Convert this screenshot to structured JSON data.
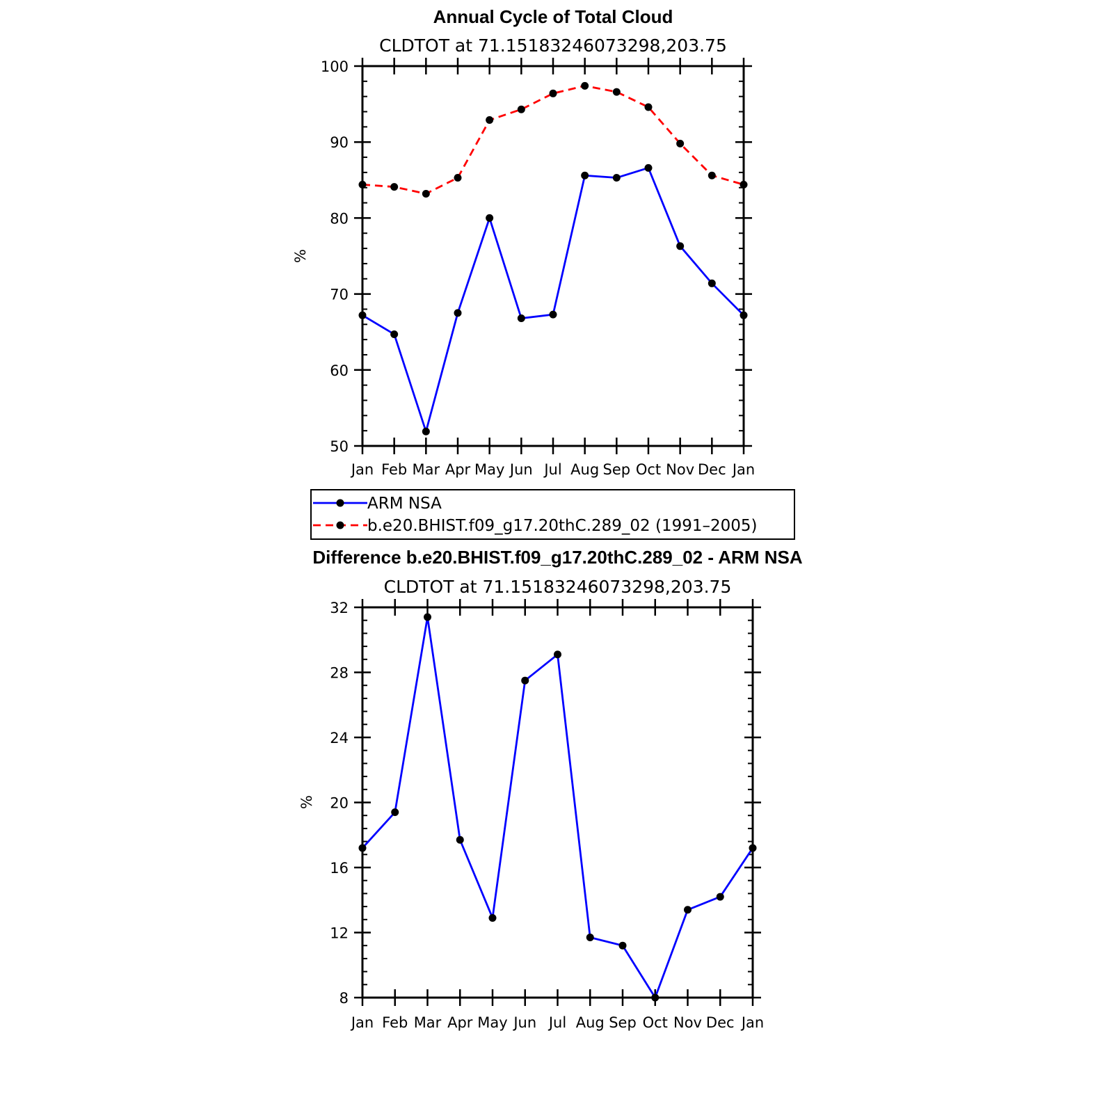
{
  "chart_data": [
    {
      "type": "line",
      "title": "Annual Cycle of Total Cloud",
      "subtitle": "CLDTOT at 71.15183246073298,203.75",
      "xlabel": "",
      "ylabel": "%",
      "categories": [
        "Jan",
        "Feb",
        "Mar",
        "Apr",
        "May",
        "Jun",
        "Jul",
        "Aug",
        "Sep",
        "Oct",
        "Nov",
        "Dec",
        "Jan"
      ],
      "ylim": [
        50,
        100
      ],
      "yticks": [
        50,
        60,
        70,
        80,
        90,
        100
      ],
      "series": [
        {
          "name": "ARM NSA",
          "color": "#0000ff",
          "style": "solid",
          "values": [
            67.2,
            64.7,
            51.9,
            67.5,
            80.0,
            66.8,
            67.3,
            85.6,
            85.3,
            86.6,
            76.3,
            71.4,
            67.2
          ]
        },
        {
          "name": "b.e20.BHIST.f09_g17.20thC.289_02 (1991–2005)",
          "color": "#ff0000",
          "style": "dashed",
          "values": [
            84.4,
            84.1,
            83.2,
            85.3,
            92.9,
            94.3,
            96.4,
            97.4,
            96.6,
            94.6,
            89.8,
            85.6,
            84.4
          ]
        }
      ],
      "legend": "below"
    },
    {
      "type": "line",
      "title": "Difference b.e20.BHIST.f09_g17.20thC.289_02 - ARM NSA",
      "subtitle": "CLDTOT at 71.15183246073298,203.75",
      "xlabel": "",
      "ylabel": "%",
      "categories": [
        "Jan",
        "Feb",
        "Mar",
        "Apr",
        "May",
        "Jun",
        "Jul",
        "Aug",
        "Sep",
        "Oct",
        "Nov",
        "Dec",
        "Jan"
      ],
      "ylim": [
        8,
        32
      ],
      "yticks": [
        8,
        12,
        16,
        20,
        24,
        28,
        32
      ],
      "series": [
        {
          "color": "#0000ff",
          "style": "solid",
          "values": [
            17.2,
            19.4,
            31.4,
            17.7,
            12.9,
            27.5,
            29.1,
            11.7,
            11.2,
            8.0,
            13.4,
            14.2,
            17.2
          ]
        }
      ]
    }
  ]
}
